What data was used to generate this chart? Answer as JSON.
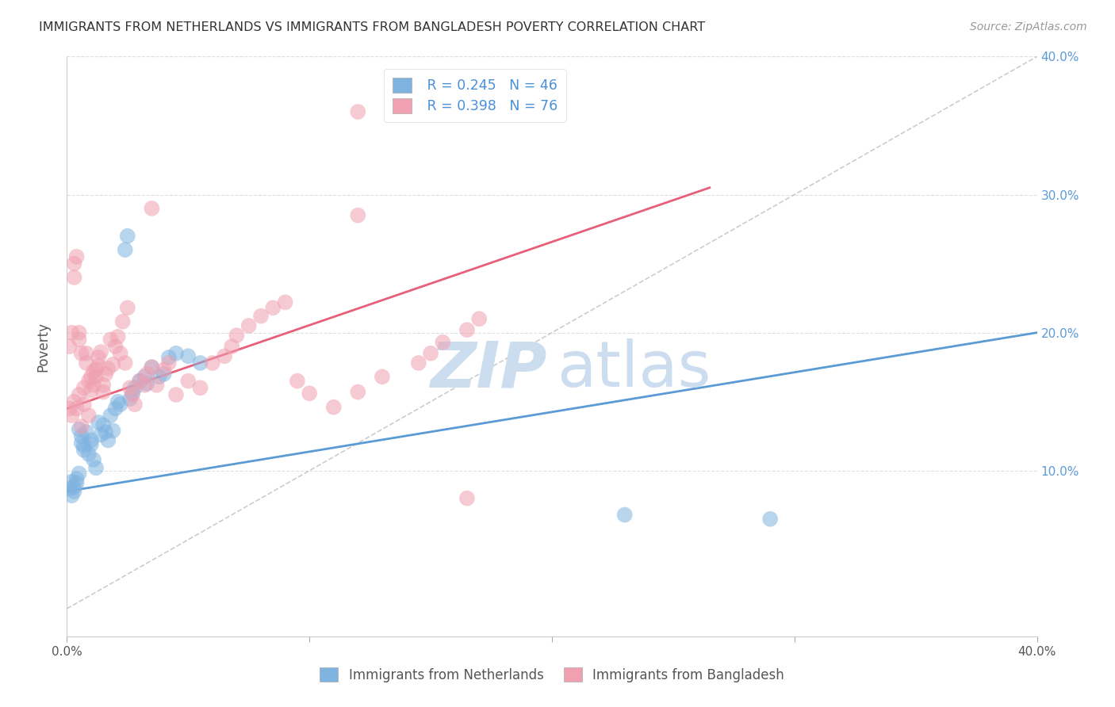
{
  "title": "IMMIGRANTS FROM NETHERLANDS VS IMMIGRANTS FROM BANGLADESH POVERTY CORRELATION CHART",
  "source": "Source: ZipAtlas.com",
  "ylabel": "Poverty",
  "xlim": [
    0.0,
    0.4
  ],
  "ylim": [
    -0.02,
    0.4
  ],
  "xtick_labels_bottom": [
    "0.0%",
    "40.0%"
  ],
  "xtick_vals_bottom": [
    0.0,
    0.4
  ],
  "ytick_labels_right": [
    "10.0%",
    "20.0%",
    "30.0%",
    "40.0%"
  ],
  "ytick_vals_right": [
    0.1,
    0.2,
    0.3,
    0.4
  ],
  "blue_color": "#7fb3e0",
  "pink_color": "#f0a0b0",
  "blue_line_color": "#5b9bd5",
  "pink_line_color": "#e85f7a",
  "dashed_line_color": "#c0c0c0",
  "legend_r_blue": "R = 0.245",
  "legend_n_blue": "N = 46",
  "legend_r_pink": "R = 0.398",
  "legend_n_pink": "N = 76",
  "legend_label_blue": "Immigrants from Netherlands",
  "legend_label_pink": "Immigrants from Bangladesh",
  "blue_scatter_x": [
    0.001,
    0.002,
    0.002,
    0.003,
    0.003,
    0.004,
    0.004,
    0.005,
    0.005,
    0.006,
    0.006,
    0.007,
    0.007,
    0.008,
    0.009,
    0.01,
    0.01,
    0.011,
    0.012,
    0.013,
    0.014,
    0.015,
    0.016,
    0.017,
    0.018,
    0.019,
    0.02,
    0.021,
    0.022,
    0.024,
    0.025,
    0.026,
    0.027,
    0.028,
    0.03,
    0.032,
    0.033,
    0.035,
    0.038,
    0.04,
    0.042,
    0.045,
    0.05,
    0.055,
    0.23,
    0.29
  ],
  "blue_scatter_y": [
    0.087,
    0.082,
    0.092,
    0.085,
    0.088,
    0.091,
    0.094,
    0.13,
    0.098,
    0.12,
    0.125,
    0.115,
    0.118,
    0.128,
    0.112,
    0.119,
    0.122,
    0.108,
    0.102,
    0.135,
    0.126,
    0.133,
    0.128,
    0.122,
    0.14,
    0.129,
    0.145,
    0.15,
    0.148,
    0.26,
    0.27,
    0.152,
    0.156,
    0.16,
    0.165,
    0.168,
    0.163,
    0.175,
    0.168,
    0.17,
    0.182,
    0.185,
    0.183,
    0.178,
    0.068,
    0.065
  ],
  "pink_scatter_x": [
    0.001,
    0.001,
    0.002,
    0.002,
    0.003,
    0.003,
    0.003,
    0.004,
    0.004,
    0.005,
    0.005,
    0.005,
    0.006,
    0.006,
    0.007,
    0.007,
    0.008,
    0.008,
    0.009,
    0.009,
    0.01,
    0.01,
    0.011,
    0.011,
    0.012,
    0.012,
    0.013,
    0.013,
    0.014,
    0.015,
    0.015,
    0.016,
    0.017,
    0.018,
    0.019,
    0.02,
    0.021,
    0.022,
    0.023,
    0.024,
    0.025,
    0.026,
    0.027,
    0.028,
    0.03,
    0.032,
    0.033,
    0.035,
    0.037,
    0.04,
    0.042,
    0.045,
    0.05,
    0.055,
    0.06,
    0.065,
    0.068,
    0.07,
    0.075,
    0.08,
    0.085,
    0.09,
    0.095,
    0.1,
    0.11,
    0.12,
    0.13,
    0.145,
    0.15,
    0.155,
    0.165,
    0.17,
    0.035,
    0.12,
    0.165,
    0.12
  ],
  "pink_scatter_y": [
    0.145,
    0.19,
    0.14,
    0.2,
    0.15,
    0.24,
    0.25,
    0.145,
    0.255,
    0.155,
    0.195,
    0.2,
    0.132,
    0.185,
    0.148,
    0.16,
    0.178,
    0.185,
    0.14,
    0.165,
    0.158,
    0.168,
    0.162,
    0.172,
    0.168,
    0.173,
    0.176,
    0.182,
    0.186,
    0.162,
    0.157,
    0.17,
    0.174,
    0.195,
    0.177,
    0.19,
    0.197,
    0.185,
    0.208,
    0.178,
    0.218,
    0.16,
    0.155,
    0.148,
    0.165,
    0.162,
    0.17,
    0.175,
    0.162,
    0.173,
    0.178,
    0.155,
    0.165,
    0.16,
    0.178,
    0.183,
    0.19,
    0.198,
    0.205,
    0.212,
    0.218,
    0.222,
    0.165,
    0.156,
    0.146,
    0.157,
    0.168,
    0.178,
    0.185,
    0.193,
    0.202,
    0.21,
    0.29,
    0.285,
    0.08,
    0.36
  ],
  "blue_line_x": [
    0.0,
    0.4
  ],
  "blue_line_y": [
    0.085,
    0.2
  ],
  "pink_line_x": [
    0.0,
    0.265
  ],
  "pink_line_y": [
    0.145,
    0.305
  ],
  "diag_line_x": [
    0.0,
    0.4
  ],
  "diag_line_y": [
    0.0,
    0.4
  ],
  "background_color": "#ffffff",
  "grid_color": "#e0e0e0"
}
